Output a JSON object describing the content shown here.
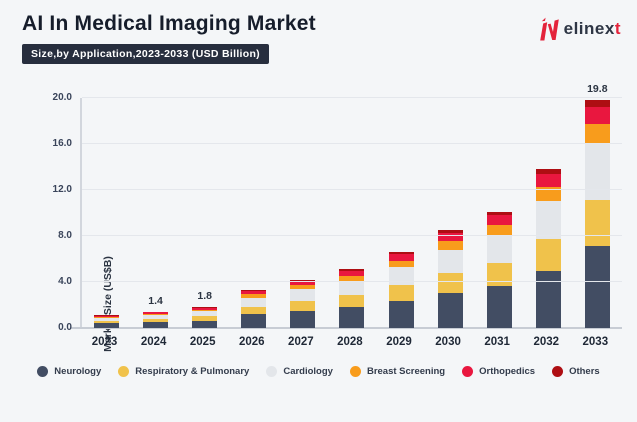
{
  "header": {
    "title": "AI In Medical Imaging Market",
    "subtitle": "Size,by Application,2023-2033 (USD Billion)",
    "logo": {
      "text_main": "elinex",
      "text_accent": "t",
      "mark_color": "#e4233b",
      "icon": "elinext-n-logo-icon"
    }
  },
  "chart_data": {
    "type": "bar",
    "stacked": true,
    "title": "AI In Medical Imaging Market",
    "subtitle": "Size,by Application,2023-2033 (USD Billion)",
    "xlabel": "",
    "ylabel": "Market Size (US$B)",
    "ylim": [
      0,
      20
    ],
    "ytick_labels": [
      "0.0",
      "4.0",
      "8.0",
      "12.0",
      "16.0",
      "20.0"
    ],
    "grid": true,
    "legend_position": "bottom",
    "categories": [
      "2023",
      "2024",
      "2025",
      "2026",
      "2027",
      "2028",
      "2029",
      "2030",
      "2031",
      "2032",
      "2033"
    ],
    "totals": [
      1.1,
      1.4,
      1.8,
      3.3,
      4.2,
      5.1,
      6.6,
      8.5,
      10.1,
      13.8,
      19.8
    ],
    "value_labels": [
      "",
      "1.4",
      "1.8",
      "",
      "",
      "",
      "",
      "",
      "",
      "",
      "19.8"
    ],
    "series": [
      {
        "name": "Neurology",
        "color": "#424d63",
        "values": [
          0.4,
          0.5,
          0.65,
          1.19,
          1.51,
          1.84,
          2.38,
          3.06,
          3.64,
          4.97,
          7.1
        ]
      },
      {
        "name": "Respiratory & Pulmonary",
        "color": "#f0c24b",
        "values": [
          0.22,
          0.28,
          0.36,
          0.66,
          0.84,
          1.02,
          1.32,
          1.7,
          2.02,
          2.76,
          4.0
        ]
      },
      {
        "name": "Cardiology",
        "color": "#e3e6ea",
        "values": [
          0.26,
          0.34,
          0.43,
          0.79,
          1.01,
          1.22,
          1.58,
          2.04,
          2.42,
          3.31,
          4.9
        ]
      },
      {
        "name": "Breast Screening",
        "color": "#f89c1c",
        "values": [
          0.1,
          0.13,
          0.16,
          0.3,
          0.38,
          0.46,
          0.59,
          0.77,
          0.91,
          1.24,
          1.7
        ]
      },
      {
        "name": "Orthopedics",
        "color": "#e9173f",
        "values": [
          0.09,
          0.11,
          0.14,
          0.26,
          0.33,
          0.41,
          0.53,
          0.68,
          0.81,
          1.1,
          1.5
        ]
      },
      {
        "name": "Others",
        "color": "#ae0e13",
        "values": [
          0.03,
          0.04,
          0.06,
          0.1,
          0.13,
          0.15,
          0.2,
          0.25,
          0.3,
          0.42,
          0.6
        ]
      }
    ]
  }
}
